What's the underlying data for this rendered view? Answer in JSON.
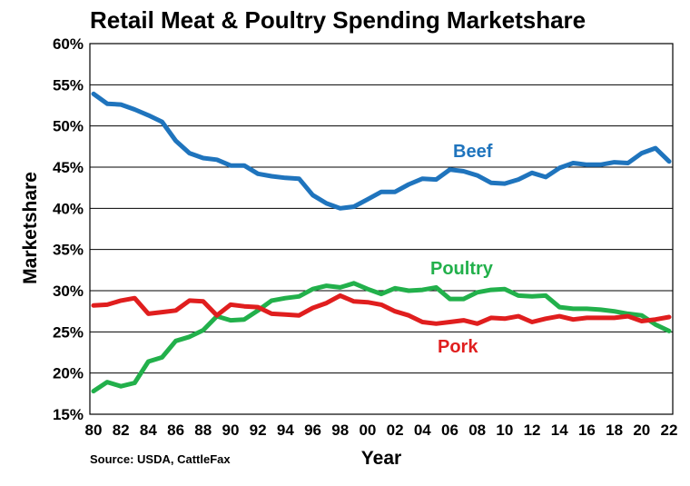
{
  "chart_data": {
    "type": "line",
    "title": "Retail Meat & Poultry Spending Marketshare",
    "xlabel": "Year",
    "ylabel": "Marketshare",
    "source": "Source: USDA, CattleFax",
    "ylim": [
      15,
      60
    ],
    "y_ticks": [
      "15%",
      "20%",
      "25%",
      "30%",
      "35%",
      "40%",
      "45%",
      "50%",
      "55%",
      "60%"
    ],
    "x": [
      1980,
      1981,
      1982,
      1983,
      1984,
      1985,
      1986,
      1987,
      1988,
      1989,
      1990,
      1991,
      1992,
      1993,
      1994,
      1995,
      1996,
      1997,
      1998,
      1999,
      2000,
      2001,
      2002,
      2003,
      2004,
      2005,
      2006,
      2007,
      2008,
      2009,
      2010,
      2011,
      2012,
      2013,
      2014,
      2015,
      2016,
      2017,
      2018,
      2019,
      2020,
      2021,
      2022
    ],
    "x_tick_labels": [
      "80",
      "82",
      "84",
      "86",
      "88",
      "90",
      "92",
      "94",
      "96",
      "98",
      "00",
      "02",
      "04",
      "06",
      "08",
      "10",
      "12",
      "14",
      "16",
      "18",
      "20",
      "22"
    ],
    "series": [
      {
        "name": "Beef",
        "color": "#1f74bd",
        "values": [
          53.9,
          52.7,
          52.6,
          52.0,
          51.3,
          50.5,
          48.2,
          46.7,
          46.1,
          45.9,
          45.2,
          45.2,
          44.2,
          43.9,
          43.7,
          43.6,
          41.6,
          40.6,
          40.0,
          40.2,
          41.1,
          42.0,
          42.0,
          42.9,
          43.6,
          43.5,
          44.7,
          44.5,
          44.0,
          43.1,
          43.0,
          43.5,
          44.3,
          43.8,
          44.9,
          45.5,
          45.3,
          45.3,
          45.6,
          45.5,
          46.7,
          47.3,
          45.7
        ]
      },
      {
        "name": "Poultry",
        "color": "#22b04b",
        "values": [
          17.8,
          18.9,
          18.4,
          18.8,
          21.4,
          21.9,
          23.9,
          24.4,
          25.2,
          26.9,
          26.4,
          26.5,
          27.6,
          28.8,
          29.1,
          29.3,
          30.2,
          30.6,
          30.4,
          30.9,
          30.2,
          29.6,
          30.3,
          30.0,
          30.1,
          30.4,
          29.0,
          29.0,
          29.8,
          30.1,
          30.2,
          29.4,
          29.3,
          29.4,
          28.0,
          27.8,
          27.8,
          27.7,
          27.5,
          27.2,
          27.0,
          25.9,
          25.1
        ]
      },
      {
        "name": "Pork",
        "color": "#e01e1e",
        "values": [
          28.2,
          28.3,
          28.8,
          29.1,
          27.2,
          27.4,
          27.6,
          28.8,
          28.7,
          27.0,
          28.3,
          28.1,
          28.0,
          27.2,
          27.1,
          27.0,
          27.9,
          28.5,
          29.4,
          28.7,
          28.6,
          28.3,
          27.5,
          27.0,
          26.2,
          26.0,
          26.2,
          26.4,
          26.0,
          26.7,
          26.6,
          26.9,
          26.2,
          26.6,
          26.9,
          26.5,
          26.7,
          26.7,
          26.7,
          26.9,
          26.3,
          26.5,
          26.8
        ]
      }
    ],
    "labels": {
      "Beef": "Beef",
      "Poultry": "Poultry",
      "Pork": "Pork"
    },
    "grid": true,
    "legend": "inline"
  }
}
